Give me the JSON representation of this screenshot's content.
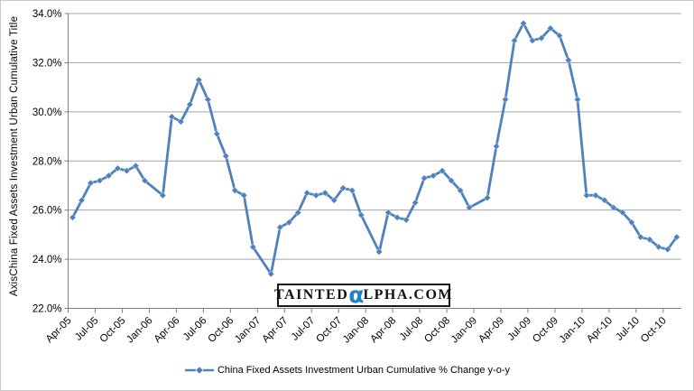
{
  "chart": {
    "y_axis_title": "AxisChina Fixed Assets Investment Urban Cumulative Title"
  },
  "watermark": {
    "part1": "TAINTED",
    "alpha": "α",
    "part2": "LPHA.COM",
    "alpha_color": "#1e82c8"
  },
  "legend": {
    "label": "China Fixed Assets Investment Urban Cumulative % Change y-o-y"
  },
  "colors": {
    "series": "#4F81BD",
    "gridline": "#a3a3a3",
    "axis": "#808080",
    "text": "#000000"
  },
  "chart_data": {
    "type": "line",
    "title": "",
    "xlabel": "",
    "ylabel": "AxisChina Fixed Assets Investment Urban Cumulative Title",
    "legend_position": "bottom",
    "grid": "horizontal-only",
    "ylim": [
      22,
      34
    ],
    "y_ticks": [
      "22.0%",
      "24.0%",
      "26.0%",
      "28.0%",
      "30.0%",
      "32.0%",
      "34.0%"
    ],
    "y_tick_values": [
      22,
      24,
      26,
      28,
      30,
      32,
      34
    ],
    "x_tick_interval_months": 3,
    "x_tick_labels": [
      "Apr-05",
      "Jul-05",
      "Oct-05",
      "Jan-06",
      "Apr-06",
      "Jul-06",
      "Oct-06",
      "Jan-07",
      "Apr-07",
      "Jul-07",
      "Oct-07",
      "Jan-08",
      "Apr-08",
      "Jul-08",
      "Oct-08",
      "Jan-09",
      "Apr-09",
      "Jul-09",
      "Oct-09",
      "Jan-10",
      "Apr-10",
      "Jul-10",
      "Oct-10"
    ],
    "categories": [
      "Apr-05",
      "May-05",
      "Jun-05",
      "Jul-05",
      "Aug-05",
      "Sep-05",
      "Oct-05",
      "Nov-05",
      "Dec-05",
      "Jan-06",
      "Feb-06",
      "Mar-06",
      "Apr-06",
      "May-06",
      "Jun-06",
      "Jul-06",
      "Aug-06",
      "Sep-06",
      "Oct-06",
      "Nov-06",
      "Dec-06",
      "Jan-07",
      "Feb-07",
      "Mar-07",
      "Apr-07",
      "May-07",
      "Jun-07",
      "Jul-07",
      "Aug-07",
      "Sep-07",
      "Oct-07",
      "Nov-07",
      "Dec-07",
      "Jan-08",
      "Feb-08",
      "Mar-08",
      "Apr-08",
      "May-08",
      "Jun-08",
      "Jul-08",
      "Aug-08",
      "Sep-08",
      "Oct-08",
      "Nov-08",
      "Dec-08",
      "Jan-09",
      "Feb-09",
      "Mar-09",
      "Apr-09",
      "May-09",
      "Jun-09",
      "Jul-09",
      "Aug-09",
      "Sep-09",
      "Oct-09",
      "Nov-09",
      "Dec-09",
      "Jan-10",
      "Feb-10",
      "Mar-10",
      "Apr-10",
      "May-10",
      "Jun-10",
      "Jul-10",
      "Aug-10",
      "Sep-10",
      "Oct-10",
      "Nov-10"
    ],
    "series": [
      {
        "name": "China Fixed Assets Investment Urban Cumulative % Change y-o-y",
        "color": "#4F81BD",
        "marker": "diamond",
        "values": [
          25.7,
          26.4,
          27.1,
          27.2,
          27.4,
          27.7,
          27.6,
          27.8,
          27.2,
          null,
          26.6,
          29.8,
          29.6,
          30.3,
          31.3,
          30.5,
          29.1,
          28.2,
          26.8,
          26.6,
          24.5,
          null,
          23.4,
          25.3,
          25.5,
          25.9,
          26.7,
          26.6,
          26.7,
          26.4,
          26.9,
          26.8,
          25.8,
          null,
          24.3,
          25.9,
          25.7,
          25.6,
          26.3,
          27.3,
          27.4,
          27.6,
          27.2,
          26.8,
          26.1,
          null,
          26.5,
          28.6,
          30.5,
          32.9,
          33.6,
          32.9,
          33.0,
          33.4,
          33.1,
          32.1,
          30.5,
          26.6,
          26.6,
          26.4,
          26.1,
          25.9,
          25.5,
          24.9,
          24.8,
          24.5,
          24.4,
          24.9
        ]
      }
    ]
  }
}
